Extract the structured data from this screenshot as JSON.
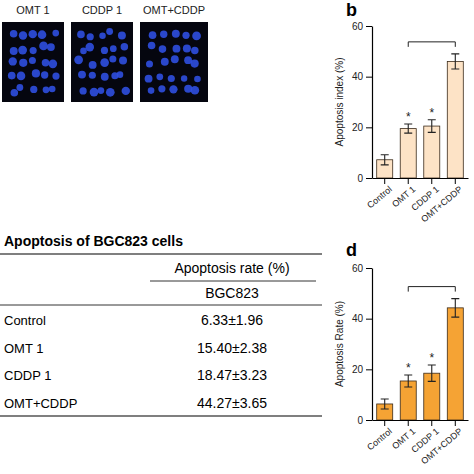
{
  "figure_a": {
    "labels": [
      "OMT 1",
      "CDDP 1",
      "OMT+CDDP"
    ]
  },
  "table": {
    "title": "Apoptosis of BGC823 cells",
    "header": "Apoptosis rate (%)",
    "subheader": "BGC823",
    "rows": [
      [
        "Control",
        "6.33±1.96"
      ],
      [
        "OMT 1",
        "15.40±2.38"
      ],
      [
        "CDDP 1",
        "18.47±3.23"
      ],
      [
        "OMT+CDDP",
        "44.27±3.65"
      ]
    ]
  },
  "chart_data": [
    {
      "type": "bar",
      "ylabel": "Apoptosis index (%)",
      "categories": [
        "Control",
        "OMT 1",
        "CDDP 1",
        "OMT+CDDP"
      ],
      "values": [
        7.2,
        19.5,
        20.5,
        46.0
      ],
      "errors": [
        2.0,
        1.8,
        2.5,
        3.0
      ],
      "color": "#fde3c6",
      "ylim": [
        0,
        60
      ],
      "yticks": [
        0,
        20,
        40,
        60
      ],
      "annotations": [
        {
          "text": "b"
        },
        {
          "text": "*",
          "category": "OMT 1"
        },
        {
          "text": "*",
          "category": "CDDP 1"
        }
      ],
      "comparisons": [
        {
          "from": "OMT 1",
          "to": "OMT+CDDP"
        }
      ]
    },
    {
      "type": "bar",
      "ylabel": "Apoptosis Rate (%)",
      "categories": [
        "Control",
        "OMT 1",
        "CDDP 1",
        "OMT+CDDP"
      ],
      "values": [
        6.33,
        15.4,
        18.47,
        44.27
      ],
      "errors": [
        1.96,
        2.38,
        3.23,
        3.65
      ],
      "color": "#f5a334",
      "ylim": [
        0,
        60
      ],
      "yticks": [
        0,
        20,
        40,
        60
      ],
      "annotations": [
        {
          "text": "d"
        },
        {
          "text": "*",
          "category": "OMT 1"
        },
        {
          "text": "*",
          "category": "CDDP 1"
        }
      ],
      "comparisons": [
        {
          "from": "OMT 1",
          "to": "OMT+CDDP"
        }
      ]
    }
  ]
}
